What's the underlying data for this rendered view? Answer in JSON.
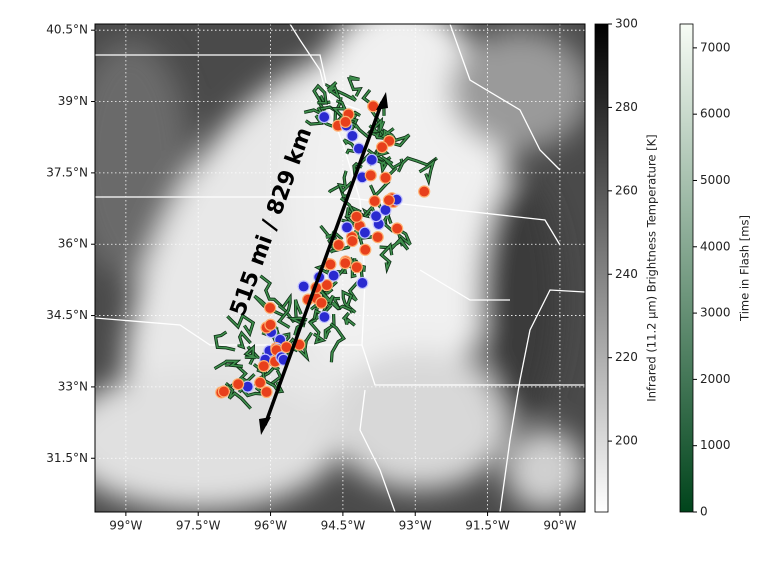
{
  "map": {
    "xlim": [
      -99.64,
      -89.48
    ],
    "ylim": [
      30.37,
      40.63
    ],
    "lon_ticks": [
      {
        "value": -99,
        "label": "99°W"
      },
      {
        "value": -97.5,
        "label": "97.5°W"
      },
      {
        "value": -96,
        "label": "96°W"
      },
      {
        "value": -94.5,
        "label": "94.5°W"
      },
      {
        "value": -93,
        "label": "93°W"
      },
      {
        "value": -91.5,
        "label": "91.5°W"
      },
      {
        "value": -90,
        "label": "90°W"
      }
    ],
    "lat_ticks": [
      {
        "value": 31.5,
        "label": "31.5°N"
      },
      {
        "value": 33,
        "label": "33°N"
      },
      {
        "value": 34.5,
        "label": "34.5°N"
      },
      {
        "value": 36,
        "label": "36°N"
      },
      {
        "value": 37.5,
        "label": "37.5°N"
      },
      {
        "value": 39,
        "label": "39°N"
      },
      {
        "value": 40.5,
        "label": "40.5°N"
      }
    ],
    "annotation": "515 mi / 829 km",
    "colorbars": [
      {
        "label": "Infrared (11.2 µm) Brightness Temperature [K]",
        "lim": [
          183,
          300
        ],
        "ticks": [
          200,
          220,
          240,
          260,
          280,
          300
        ],
        "colors": [
          "#ffffff",
          "#000000"
        ]
      },
      {
        "label": "Time in Flash [ms]",
        "lim": [
          0,
          7360
        ],
        "ticks": [
          0,
          1000,
          2000,
          3000,
          4000,
          5000,
          6000,
          7000
        ],
        "colors": [
          "#00441b",
          "#f7fcf5"
        ]
      }
    ]
  }
}
